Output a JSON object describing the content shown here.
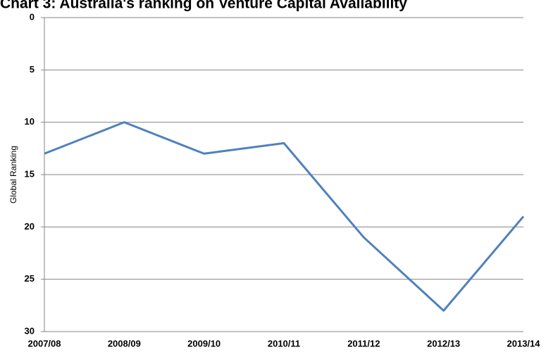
{
  "chart_data": {
    "type": "line",
    "title": "Chart 3: Australia's ranking on Venture Capital Availability",
    "y_label": "Global Ranking",
    "categories": [
      "2007/08",
      "2008/09",
      "2009/10",
      "2010/11",
      "2011/12",
      "2012/13",
      "2013/14"
    ],
    "series": [
      {
        "name": "Global Ranking",
        "color": "#4f81bd",
        "values": [
          13,
          10,
          13,
          12,
          21,
          28,
          19
        ]
      }
    ],
    "ylim": [
      0,
      30
    ],
    "yticks": [
      0,
      5,
      10,
      15,
      20,
      25,
      30
    ],
    "y_inverted": true,
    "grid": true
  }
}
